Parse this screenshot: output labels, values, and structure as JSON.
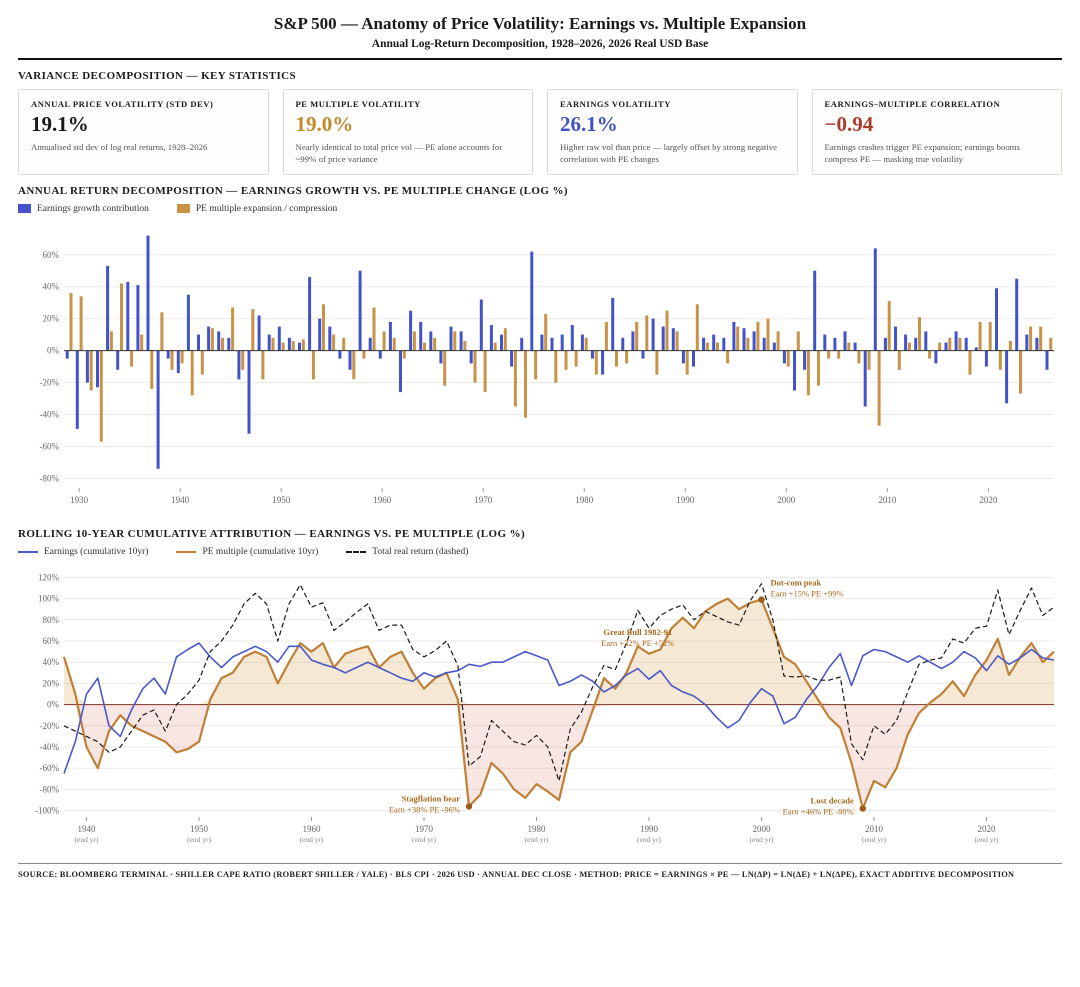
{
  "header": {
    "title": "S&P 500 — Anatomy of Price Volatility: Earnings vs. Multiple Expansion",
    "subtitle": "Annual Log-Return Decomposition, 1928–2026, 2026 Real USD Base"
  },
  "stats": {
    "section_title": "VARIANCE DECOMPOSITION — KEY STATISTICS",
    "cards": [
      {
        "label": "ANNUAL PRICE VOLATILITY (STD DEV)",
        "value": "19.1%",
        "color": "#1a1a1a",
        "desc": "Annualised std dev of log real returns, 1928–2026"
      },
      {
        "label": "PE MULTIPLE VOLATILITY",
        "value": "19.0%",
        "color": "#c08a2e",
        "desc": "Nearly identical to total price vol — PE alone accounts for ~99% of price variance"
      },
      {
        "label": "EARNINGS VOLATILITY",
        "value": "26.1%",
        "color": "#3f51c1",
        "desc": "Higher raw vol than price — largely offset by strong negative correlation with PE changes"
      },
      {
        "label": "EARNINGS–MULTIPLE CORRELATION",
        "value": "−0.94",
        "color": "#b03a2e",
        "desc": "Earnings crashes trigger PE expansion; earnings booms compress PE — masking true volatility"
      }
    ]
  },
  "bar_section": {
    "title": "ANNUAL RETURN DECOMPOSITION — EARNINGS GROWTH VS. PE MULTIPLE CHANGE (LOG %)"
  },
  "rolling_section": {
    "title": "ROLLING 10-YEAR CUMULATIVE ATTRIBUTION — EARNINGS VS. PE MULTIPLE (LOG %)"
  },
  "footer": {
    "source": "SOURCE: BLOOMBERG TERMINAL · SHILLER CAPE RATIO (ROBERT SHILLER / YALE) · BLS CPI · 2026 USD · ANNUAL DEC CLOSE · METHOD: PRICE = EARNINGS × PE — LN(ΔP) = LN(ΔE) + LN(ΔPE), EXACT ADDITIVE DECOMPOSITION"
  },
  "chart_data": [
    {
      "type": "bar",
      "title": "Annual return decomposition, log %",
      "ylim": [
        -86,
        78
      ],
      "yticks": [
        -80,
        -60,
        -40,
        -20,
        0,
        20,
        40,
        60
      ],
      "xticks": [
        1930,
        1940,
        1950,
        1960,
        1970,
        1980,
        1990,
        2000,
        2010,
        2020
      ],
      "years": [
        1929,
        1930,
        1931,
        1932,
        1933,
        1934,
        1935,
        1936,
        1937,
        1938,
        1939,
        1940,
        1941,
        1942,
        1943,
        1944,
        1945,
        1946,
        1947,
        1948,
        1949,
        1950,
        1951,
        1952,
        1953,
        1954,
        1955,
        1956,
        1957,
        1958,
        1959,
        1960,
        1961,
        1962,
        1963,
        1964,
        1965,
        1966,
        1967,
        1968,
        1969,
        1970,
        1971,
        1972,
        1973,
        1974,
        1975,
        1976,
        1977,
        1978,
        1979,
        1980,
        1981,
        1982,
        1983,
        1984,
        1985,
        1986,
        1987,
        1988,
        1989,
        1990,
        1991,
        1992,
        1993,
        1994,
        1995,
        1996,
        1997,
        1998,
        1999,
        2000,
        2001,
        2002,
        2003,
        2004,
        2005,
        2006,
        2007,
        2008,
        2009,
        2010,
        2011,
        2012,
        2013,
        2014,
        2015,
        2016,
        2017,
        2018,
        2019,
        2020,
        2021,
        2022,
        2023,
        2024,
        2025,
        2026
      ],
      "series": [
        {
          "name": "Earnings growth contribution",
          "color": "#4253c9",
          "values": [
            -5,
            -49,
            -20,
            -23,
            53,
            -12,
            43,
            41,
            72,
            -74,
            -5,
            -14,
            35,
            10,
            15,
            12,
            8,
            -18,
            -52,
            22,
            10,
            15,
            8,
            5,
            46,
            20,
            15,
            -5,
            -12,
            50,
            8,
            -5,
            18,
            -26,
            25,
            18,
            12,
            -8,
            15,
            12,
            -8,
            32,
            16,
            10,
            -10,
            8,
            62,
            10,
            8,
            10,
            16,
            10,
            -5,
            -15,
            33,
            8,
            12,
            -5,
            20,
            15,
            14,
            -8,
            -10,
            8,
            10,
            8,
            18,
            14,
            12,
            8,
            5,
            -8,
            -25,
            -12,
            50,
            10,
            8,
            12,
            5,
            -35,
            64,
            8,
            15,
            10,
            8,
            12,
            -8,
            5,
            12,
            8,
            2,
            -10,
            39,
            -33,
            45,
            10,
            8,
            -12
          ]
        },
        {
          "name": "PE multiple expansion / compression",
          "color": "#c69349",
          "values": [
            36,
            34,
            -25,
            -57,
            12,
            42,
            -10,
            10,
            -24,
            24,
            -12,
            -8,
            -28,
            -15,
            14,
            8,
            27,
            -12,
            26,
            -18,
            8,
            5,
            6,
            7,
            -18,
            29,
            10,
            8,
            -18,
            -5,
            27,
            12,
            8,
            -5,
            12,
            5,
            8,
            -22,
            12,
            6,
            -20,
            -26,
            5,
            14,
            -35,
            -42,
            -18,
            23,
            -20,
            -12,
            -10,
            8,
            -15,
            18,
            -10,
            -8,
            18,
            22,
            -15,
            25,
            12,
            -15,
            29,
            5,
            5,
            -8,
            15,
            8,
            18,
            20,
            12,
            -10,
            12,
            -28,
            -22,
            -5,
            -5,
            5,
            -8,
            -12,
            -47,
            31,
            -12,
            5,
            21,
            -5,
            5,
            8,
            8,
            -15,
            18,
            18,
            -12,
            6,
            -27,
            15,
            15,
            8
          ]
        }
      ]
    },
    {
      "type": "line",
      "title": "Rolling 10-year cumulative attribution, log %",
      "ylim": [
        -106,
        126
      ],
      "yticks": [
        -100,
        -80,
        -60,
        -40,
        -20,
        0,
        20,
        40,
        60,
        80,
        100,
        120
      ],
      "xticks": [
        1940,
        1950,
        1960,
        1970,
        1980,
        1990,
        2000,
        2010,
        2020
      ],
      "xtick_sub": "(end yr)",
      "area_colors": {
        "positive": "rgba(214,164,86,0.25)",
        "negative": "rgba(222,132,110,0.20)"
      },
      "zero_line_color": "#7b3425",
      "years": [
        1938,
        1939,
        1940,
        1941,
        1942,
        1943,
        1944,
        1945,
        1946,
        1947,
        1948,
        1949,
        1950,
        1951,
        1952,
        1953,
        1954,
        1955,
        1956,
        1957,
        1958,
        1959,
        1960,
        1961,
        1962,
        1963,
        1964,
        1965,
        1966,
        1967,
        1968,
        1969,
        1970,
        1971,
        1972,
        1973,
        1974,
        1975,
        1976,
        1977,
        1978,
        1979,
        1980,
        1981,
        1982,
        1983,
        1984,
        1985,
        1986,
        1987,
        1988,
        1989,
        1990,
        1991,
        1992,
        1993,
        1994,
        1995,
        1996,
        1997,
        1998,
        1999,
        2000,
        2001,
        2002,
        2003,
        2004,
        2005,
        2006,
        2007,
        2008,
        2009,
        2010,
        2011,
        2012,
        2013,
        2014,
        2015,
        2016,
        2017,
        2018,
        2019,
        2020,
        2021,
        2022,
        2023,
        2024,
        2025,
        2026
      ],
      "series": [
        {
          "name": "Earnings (cumulative 10yr)",
          "color": "#4a58c8",
          "width": 1.6,
          "values": [
            -65,
            -35,
            10,
            25,
            -20,
            -30,
            -5,
            15,
            25,
            10,
            45,
            52,
            58,
            45,
            35,
            45,
            50,
            55,
            50,
            40,
            55,
            55,
            42,
            38,
            35,
            30,
            35,
            40,
            35,
            30,
            25,
            22,
            30,
            26,
            30,
            32,
            38,
            36,
            40,
            40,
            45,
            50,
            46,
            42,
            18,
            22,
            28,
            22,
            12,
            18,
            28,
            34,
            24,
            32,
            18,
            12,
            8,
            0,
            -12,
            -22,
            -15,
            2,
            15,
            8,
            -18,
            -12,
            5,
            18,
            35,
            48,
            18,
            46,
            52,
            50,
            45,
            40,
            46,
            40,
            34,
            40,
            50,
            44,
            32,
            46,
            38,
            44,
            52,
            44,
            42
          ]
        },
        {
          "name": "PE multiple (cumulative 10yr)",
          "color": "#c08038",
          "width": 2.2,
          "values": [
            45,
            10,
            -40,
            -60,
            -25,
            -10,
            -20,
            -25,
            -30,
            -35,
            -45,
            -42,
            -35,
            5,
            25,
            30,
            45,
            50,
            45,
            20,
            40,
            58,
            50,
            58,
            35,
            48,
            52,
            55,
            35,
            45,
            50,
            30,
            15,
            25,
            30,
            5,
            -96,
            -85,
            -55,
            -65,
            -80,
            -88,
            -75,
            -82,
            -90,
            -45,
            -35,
            -5,
            25,
            15,
            30,
            55,
            48,
            52,
            72,
            82,
            72,
            88,
            95,
            100,
            90,
            96,
            99,
            72,
            45,
            38,
            22,
            5,
            -12,
            -22,
            -55,
            -98,
            -72,
            -78,
            -60,
            -28,
            -8,
            2,
            10,
            22,
            8,
            28,
            42,
            62,
            28,
            45,
            58,
            40,
            50
          ]
        },
        {
          "name": "Total real return (dashed)",
          "color": "#1a1a1a",
          "width": 1.2,
          "dashed": true,
          "derived": "sum of earnings and PE cumulative series (exact additive decomposition)"
        }
      ],
      "annotations": [
        {
          "title": "Stagflation bear",
          "detail": "Earn +38% PE -96%",
          "year": 1974,
          "value": -96,
          "dot": true,
          "side": "left"
        },
        {
          "title": "Great Bull 1982-91",
          "detail": "Earn +32% PE +52%",
          "year": 1989,
          "value": 62,
          "dot": false,
          "side": "middle"
        },
        {
          "title": "Dot-com peak",
          "detail": "Earn +15% PE +99%",
          "year": 2000,
          "value": 99,
          "dot": true,
          "side": "right"
        },
        {
          "title": "Lost decade",
          "detail": "Earn +46% PE -98%",
          "year": 2009,
          "value": -98,
          "dot": true,
          "side": "left"
        }
      ]
    }
  ]
}
